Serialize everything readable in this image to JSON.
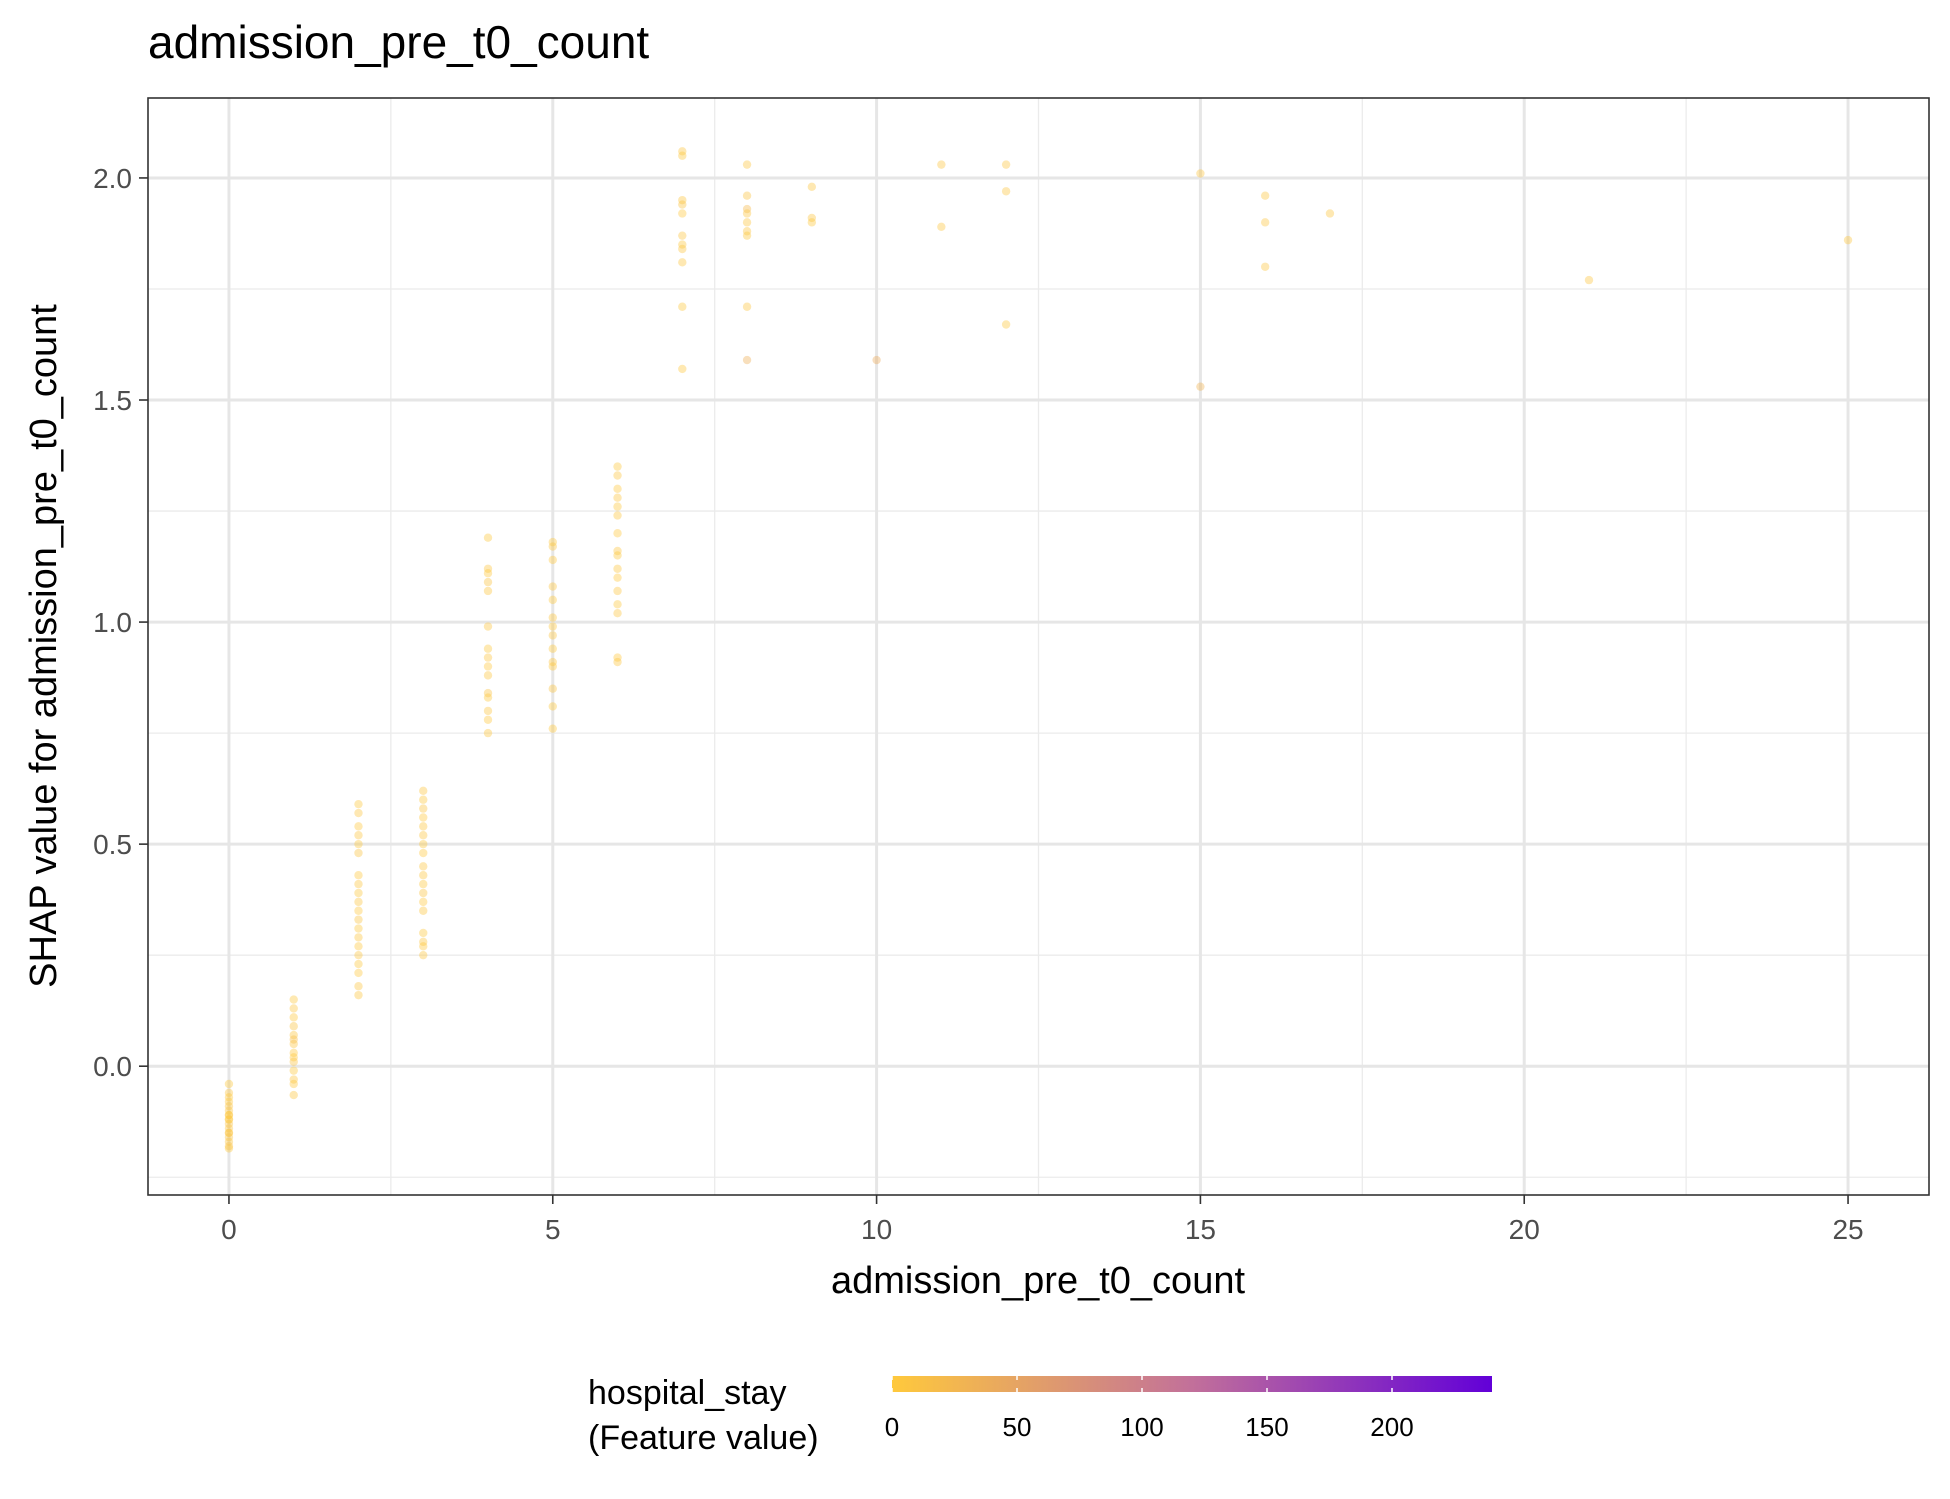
{
  "chart_data": {
    "type": "scatter",
    "title": "admission_pre_t0_count",
    "xlabel": "admission_pre_t0_count",
    "ylabel": "SHAP value for admission_pre_t0_count",
    "xlim": [
      -1.25,
      26.25
    ],
    "ylim": [
      -0.29,
      2.18
    ],
    "x_ticks": [
      0,
      5,
      10,
      15,
      20,
      25
    ],
    "x_tick_labels": [
      "0",
      "5",
      "10",
      "15",
      "20",
      "25"
    ],
    "y_ticks": [
      0.0,
      0.5,
      1.0,
      1.5,
      2.0
    ],
    "y_tick_labels": [
      "0.0",
      "0.5",
      "1.0",
      "1.5",
      "2.0"
    ],
    "x_minor_ticks": [
      2.5,
      7.5,
      12.5,
      17.5,
      22.5
    ],
    "y_minor_ticks": [
      -0.25,
      0.25,
      0.75,
      1.25,
      1.75
    ],
    "grid": true,
    "point_alpha": 0.4,
    "legend": {
      "title_line1": "hospital_stay",
      "title_line2": "(Feature value)",
      "placement": "bottom",
      "range": [
        0,
        240
      ],
      "ticks": [
        0,
        50,
        100,
        150,
        200
      ],
      "tick_labels": [
        "0",
        "50",
        "100",
        "150",
        "200"
      ],
      "color_low": "#ffc93c",
      "color_mid": "#c2709a",
      "color_high": "#6200d8"
    },
    "points": [
      [
        0,
        -0.04,
        3
      ],
      [
        0,
        -0.06,
        5
      ],
      [
        0,
        -0.08,
        2
      ],
      [
        0,
        -0.09,
        8
      ],
      [
        0,
        -0.1,
        4
      ],
      [
        0,
        -0.11,
        6
      ],
      [
        0,
        -0.12,
        3
      ],
      [
        0,
        -0.13,
        10
      ],
      [
        0,
        -0.14,
        5
      ],
      [
        0,
        -0.15,
        2
      ],
      [
        0,
        -0.16,
        7
      ],
      [
        0,
        -0.17,
        4
      ],
      [
        0,
        -0.18,
        12
      ],
      [
        0,
        -0.185,
        3
      ],
      [
        0,
        -0.07,
        1
      ],
      [
        0,
        -0.12,
        2
      ],
      [
        0,
        -0.15,
        9
      ],
      [
        0,
        -0.11,
        1
      ],
      [
        1,
        0.15,
        3
      ],
      [
        1,
        0.13,
        5
      ],
      [
        1,
        0.11,
        2
      ],
      [
        1,
        0.09,
        8
      ],
      [
        1,
        0.07,
        4
      ],
      [
        1,
        0.05,
        6
      ],
      [
        1,
        0.03,
        2
      ],
      [
        1,
        0.01,
        9
      ],
      [
        1,
        -0.01,
        3
      ],
      [
        1,
        -0.03,
        5
      ],
      [
        1,
        -0.04,
        2
      ],
      [
        1,
        -0.065,
        4
      ],
      [
        1,
        0.06,
        15
      ],
      [
        1,
        0.02,
        1
      ],
      [
        2,
        0.59,
        3
      ],
      [
        2,
        0.57,
        5
      ],
      [
        2,
        0.54,
        2
      ],
      [
        2,
        0.52,
        6
      ],
      [
        2,
        0.5,
        3
      ],
      [
        2,
        0.48,
        8
      ],
      [
        2,
        0.43,
        2
      ],
      [
        2,
        0.41,
        4
      ],
      [
        2,
        0.39,
        3
      ],
      [
        2,
        0.37,
        5
      ],
      [
        2,
        0.35,
        2
      ],
      [
        2,
        0.33,
        7
      ],
      [
        2,
        0.31,
        3
      ],
      [
        2,
        0.29,
        4
      ],
      [
        2,
        0.27,
        2
      ],
      [
        2,
        0.25,
        6
      ],
      [
        2,
        0.23,
        3
      ],
      [
        2,
        0.21,
        2
      ],
      [
        2,
        0.18,
        5
      ],
      [
        2,
        0.16,
        4
      ],
      [
        3,
        0.62,
        5
      ],
      [
        3,
        0.6,
        3
      ],
      [
        3,
        0.58,
        8
      ],
      [
        3,
        0.56,
        2
      ],
      [
        3,
        0.54,
        4
      ],
      [
        3,
        0.52,
        6
      ],
      [
        3,
        0.5,
        3
      ],
      [
        3,
        0.48,
        2
      ],
      [
        3,
        0.45,
        5
      ],
      [
        3,
        0.43,
        4
      ],
      [
        3,
        0.41,
        3
      ],
      [
        3,
        0.39,
        7
      ],
      [
        3,
        0.37,
        2
      ],
      [
        3,
        0.35,
        4
      ],
      [
        3,
        0.3,
        3
      ],
      [
        3,
        0.28,
        5
      ],
      [
        3,
        0.27,
        2
      ],
      [
        3,
        0.25,
        4
      ],
      [
        4,
        1.19,
        3
      ],
      [
        4,
        1.12,
        5
      ],
      [
        4,
        1.11,
        2
      ],
      [
        4,
        1.09,
        8
      ],
      [
        4,
        1.07,
        4
      ],
      [
        4,
        0.99,
        6
      ],
      [
        4,
        0.94,
        3
      ],
      [
        4,
        0.92,
        5
      ],
      [
        4,
        0.9,
        2
      ],
      [
        4,
        0.88,
        4
      ],
      [
        4,
        0.84,
        10
      ],
      [
        4,
        0.83,
        3
      ],
      [
        4,
        0.8,
        5
      ],
      [
        4,
        0.78,
        2
      ],
      [
        4,
        0.75,
        4
      ],
      [
        5,
        1.18,
        3
      ],
      [
        5,
        1.17,
        5
      ],
      [
        5,
        1.14,
        2
      ],
      [
        5,
        1.08,
        6
      ],
      [
        5,
        1.05,
        3
      ],
      [
        5,
        1.01,
        4
      ],
      [
        5,
        0.99,
        2
      ],
      [
        5,
        0.97,
        5
      ],
      [
        5,
        0.94,
        3
      ],
      [
        5,
        0.91,
        4
      ],
      [
        5,
        0.9,
        2
      ],
      [
        5,
        0.85,
        8
      ],
      [
        5,
        0.81,
        3
      ],
      [
        5,
        0.76,
        1
      ],
      [
        6,
        1.35,
        3
      ],
      [
        6,
        1.33,
        5
      ],
      [
        6,
        1.3,
        2
      ],
      [
        6,
        1.28,
        6
      ],
      [
        6,
        1.26,
        3
      ],
      [
        6,
        1.24,
        4
      ],
      [
        6,
        1.2,
        2
      ],
      [
        6,
        1.16,
        5
      ],
      [
        6,
        1.15,
        3
      ],
      [
        6,
        1.12,
        4
      ],
      [
        6,
        1.1,
        2
      ],
      [
        6,
        1.07,
        6
      ],
      [
        6,
        1.04,
        3
      ],
      [
        6,
        1.02,
        5
      ],
      [
        6,
        0.92,
        2
      ],
      [
        6,
        0.91,
        4
      ],
      [
        7,
        2.06,
        5
      ],
      [
        7,
        2.05,
        3
      ],
      [
        7,
        1.95,
        4
      ],
      [
        7,
        1.94,
        8
      ],
      [
        7,
        1.92,
        2
      ],
      [
        7,
        1.87,
        6
      ],
      [
        7,
        1.85,
        3
      ],
      [
        7,
        1.84,
        5
      ],
      [
        7,
        1.81,
        4
      ],
      [
        7,
        1.71,
        3
      ],
      [
        7,
        1.57,
        2
      ],
      [
        8,
        2.03,
        6
      ],
      [
        8,
        1.96,
        8
      ],
      [
        8,
        1.93,
        20
      ],
      [
        8,
        1.92,
        5
      ],
      [
        8,
        1.9,
        4
      ],
      [
        8,
        1.88,
        6
      ],
      [
        8,
        1.87,
        3
      ],
      [
        8,
        1.71,
        5
      ],
      [
        8,
        1.59,
        35
      ],
      [
        9,
        1.98,
        4
      ],
      [
        9,
        1.91,
        6
      ],
      [
        9,
        1.9,
        3
      ],
      [
        10,
        1.59,
        40
      ],
      [
        11,
        2.03,
        5
      ],
      [
        11,
        1.89,
        4
      ],
      [
        12,
        2.03,
        6
      ],
      [
        12,
        1.97,
        5
      ],
      [
        12,
        1.67,
        3
      ],
      [
        15,
        2.01,
        5
      ],
      [
        15,
        1.53,
        30
      ],
      [
        16,
        1.96,
        4
      ],
      [
        16,
        1.9,
        6
      ],
      [
        16,
        1.8,
        5
      ],
      [
        17,
        1.92,
        4
      ],
      [
        21,
        1.77,
        5
      ],
      [
        25,
        1.86,
        4
      ]
    ]
  }
}
